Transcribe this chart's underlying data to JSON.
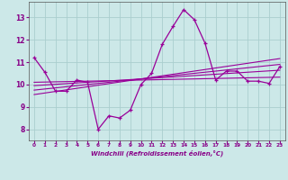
{
  "xlabel": "Windchill (Refroidissement éolien,°C)",
  "x": [
    0,
    1,
    2,
    3,
    4,
    5,
    6,
    7,
    8,
    9,
    10,
    11,
    12,
    13,
    14,
    15,
    16,
    17,
    18,
    19,
    20,
    21,
    22,
    23
  ],
  "y_main": [
    11.2,
    10.55,
    9.7,
    9.7,
    10.2,
    10.1,
    8.0,
    8.6,
    8.5,
    8.85,
    10.0,
    10.5,
    11.8,
    12.6,
    13.35,
    12.9,
    11.85,
    10.2,
    10.6,
    10.6,
    10.15,
    10.15,
    10.05,
    10.8
  ],
  "y_reg1": [
    9.55,
    9.62,
    9.69,
    9.76,
    9.83,
    9.9,
    9.97,
    10.04,
    10.11,
    10.18,
    10.25,
    10.32,
    10.39,
    10.46,
    10.53,
    10.6,
    10.67,
    10.74,
    10.81,
    10.88,
    10.95,
    11.02,
    11.09,
    11.16
  ],
  "y_reg2": [
    9.75,
    9.8,
    9.85,
    9.9,
    9.95,
    10.0,
    10.05,
    10.1,
    10.15,
    10.2,
    10.25,
    10.3,
    10.35,
    10.4,
    10.45,
    10.5,
    10.55,
    10.6,
    10.65,
    10.7,
    10.75,
    10.8,
    10.85,
    10.9
  ],
  "y_reg3": [
    9.95,
    9.98,
    10.01,
    10.04,
    10.07,
    10.1,
    10.13,
    10.16,
    10.19,
    10.22,
    10.25,
    10.28,
    10.31,
    10.34,
    10.37,
    10.4,
    10.43,
    10.46,
    10.49,
    10.52,
    10.55,
    10.58,
    10.61,
    10.64
  ],
  "y_reg4": [
    10.1,
    10.11,
    10.12,
    10.13,
    10.14,
    10.15,
    10.16,
    10.17,
    10.18,
    10.19,
    10.2,
    10.21,
    10.22,
    10.23,
    10.24,
    10.25,
    10.26,
    10.27,
    10.28,
    10.29,
    10.3,
    10.31,
    10.32,
    10.33
  ],
  "line_color": "#990099",
  "bg_color": "#cce8e8",
  "grid_color": "#aacece",
  "ylim": [
    7.5,
    13.7
  ],
  "yticks": [
    8,
    9,
    10,
    11,
    12,
    13
  ],
  "xticks": [
    0,
    1,
    2,
    3,
    4,
    5,
    6,
    7,
    8,
    9,
    10,
    11,
    12,
    13,
    14,
    15,
    16,
    17,
    18,
    19,
    20,
    21,
    22,
    23
  ]
}
